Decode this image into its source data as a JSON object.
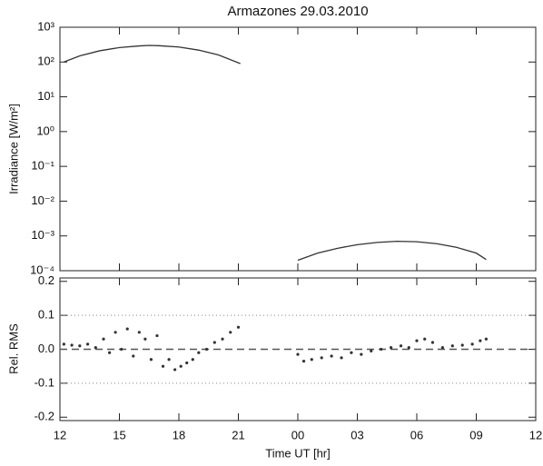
{
  "chart_data": [
    {
      "type": "line",
      "title": "Armazones 29.03.2010",
      "y_label": "Irradiance [W/m²]",
      "log_y": true,
      "color": "#333333",
      "ylim": [
        0.0001,
        1000
      ],
      "yticks": [
        {
          "value": 1000,
          "label": "10³"
        },
        {
          "value": 100,
          "label": "10²"
        },
        {
          "value": 10,
          "label": "10¹"
        },
        {
          "value": 1,
          "label": "10⁰"
        },
        {
          "value": 0.1,
          "label": "10⁻¹"
        },
        {
          "value": 0.01,
          "label": "10⁻²"
        },
        {
          "value": 0.001,
          "label": "10⁻³"
        },
        {
          "value": 0.0001,
          "label": "10⁻⁴"
        }
      ],
      "xlim": [
        12,
        36
      ],
      "xticks": [
        12,
        15,
        18,
        21,
        24,
        27,
        30,
        33,
        36
      ],
      "x": [
        12.2,
        13,
        14,
        15,
        16,
        16.5,
        17,
        18,
        19,
        20,
        21.1,
        22.5,
        24,
        25,
        26,
        27,
        28,
        29,
        30,
        31,
        32,
        33,
        33.5
      ],
      "values": [
        100,
        150,
        210,
        260,
        290,
        300,
        295,
        270,
        220,
        160,
        90,
        null,
        0.0002,
        0.00032,
        0.00044,
        0.00056,
        0.00065,
        0.0007,
        0.00068,
        0.0006,
        0.00047,
        0.00032,
        0.00021
      ]
    },
    {
      "type": "scatter",
      "x_label": "Time UT [hr]",
      "y_label": "Rel. RMS",
      "color": "#333333",
      "ylim": [
        -0.21,
        0.21
      ],
      "yticks": [
        0.2,
        0.1,
        {
          "value": 0,
          "label": "0.0"
        },
        -0.1,
        -0.2
      ],
      "reference_lines": [
        {
          "value": 0.1,
          "style": "dotted"
        },
        {
          "value": 0,
          "style": "dashed"
        },
        {
          "value": -0.1,
          "style": "dotted"
        }
      ],
      "xlim": [
        12,
        36
      ],
      "xticks": [
        {
          "value": 12,
          "label": "12"
        },
        {
          "value": 15,
          "label": "15"
        },
        {
          "value": 18,
          "label": "18"
        },
        {
          "value": 21,
          "label": "21"
        },
        {
          "value": 24,
          "label": "00"
        },
        {
          "value": 27,
          "label": "03"
        },
        {
          "value": 30,
          "label": "06"
        },
        {
          "value": 33,
          "label": "09"
        },
        {
          "value": 36,
          "label": "12"
        }
      ],
      "x": [
        12.2,
        12.6,
        13.0,
        13.4,
        13.8,
        14.2,
        14.5,
        14.8,
        15.1,
        15.4,
        15.7,
        16.0,
        16.3,
        16.6,
        16.9,
        17.2,
        17.5,
        17.8,
        18.1,
        18.4,
        18.7,
        19.0,
        19.4,
        19.8,
        20.2,
        20.6,
        21.0,
        24.0,
        24.3,
        24.7,
        25.2,
        25.7,
        26.2,
        26.7,
        27.2,
        27.7,
        28.2,
        28.7,
        29.2,
        29.6,
        30.0,
        30.4,
        30.8,
        31.3,
        31.8,
        32.3,
        32.8,
        33.2,
        33.5
      ],
      "values": [
        0.015,
        0.012,
        0.01,
        0.015,
        0.005,
        0.03,
        -0.01,
        0.05,
        0.0,
        0.06,
        -0.02,
        0.05,
        0.03,
        -0.03,
        0.04,
        -0.05,
        -0.03,
        -0.06,
        -0.05,
        -0.04,
        -0.03,
        -0.01,
        0.0,
        0.02,
        0.03,
        0.05,
        0.065,
        -0.015,
        -0.035,
        -0.03,
        -0.025,
        -0.02,
        -0.025,
        -0.01,
        -0.015,
        -0.005,
        0.0,
        0.005,
        0.01,
        0.005,
        0.025,
        0.03,
        0.02,
        0.005,
        0.01,
        0.012,
        0.015,
        0.025,
        0.03
      ]
    }
  ]
}
